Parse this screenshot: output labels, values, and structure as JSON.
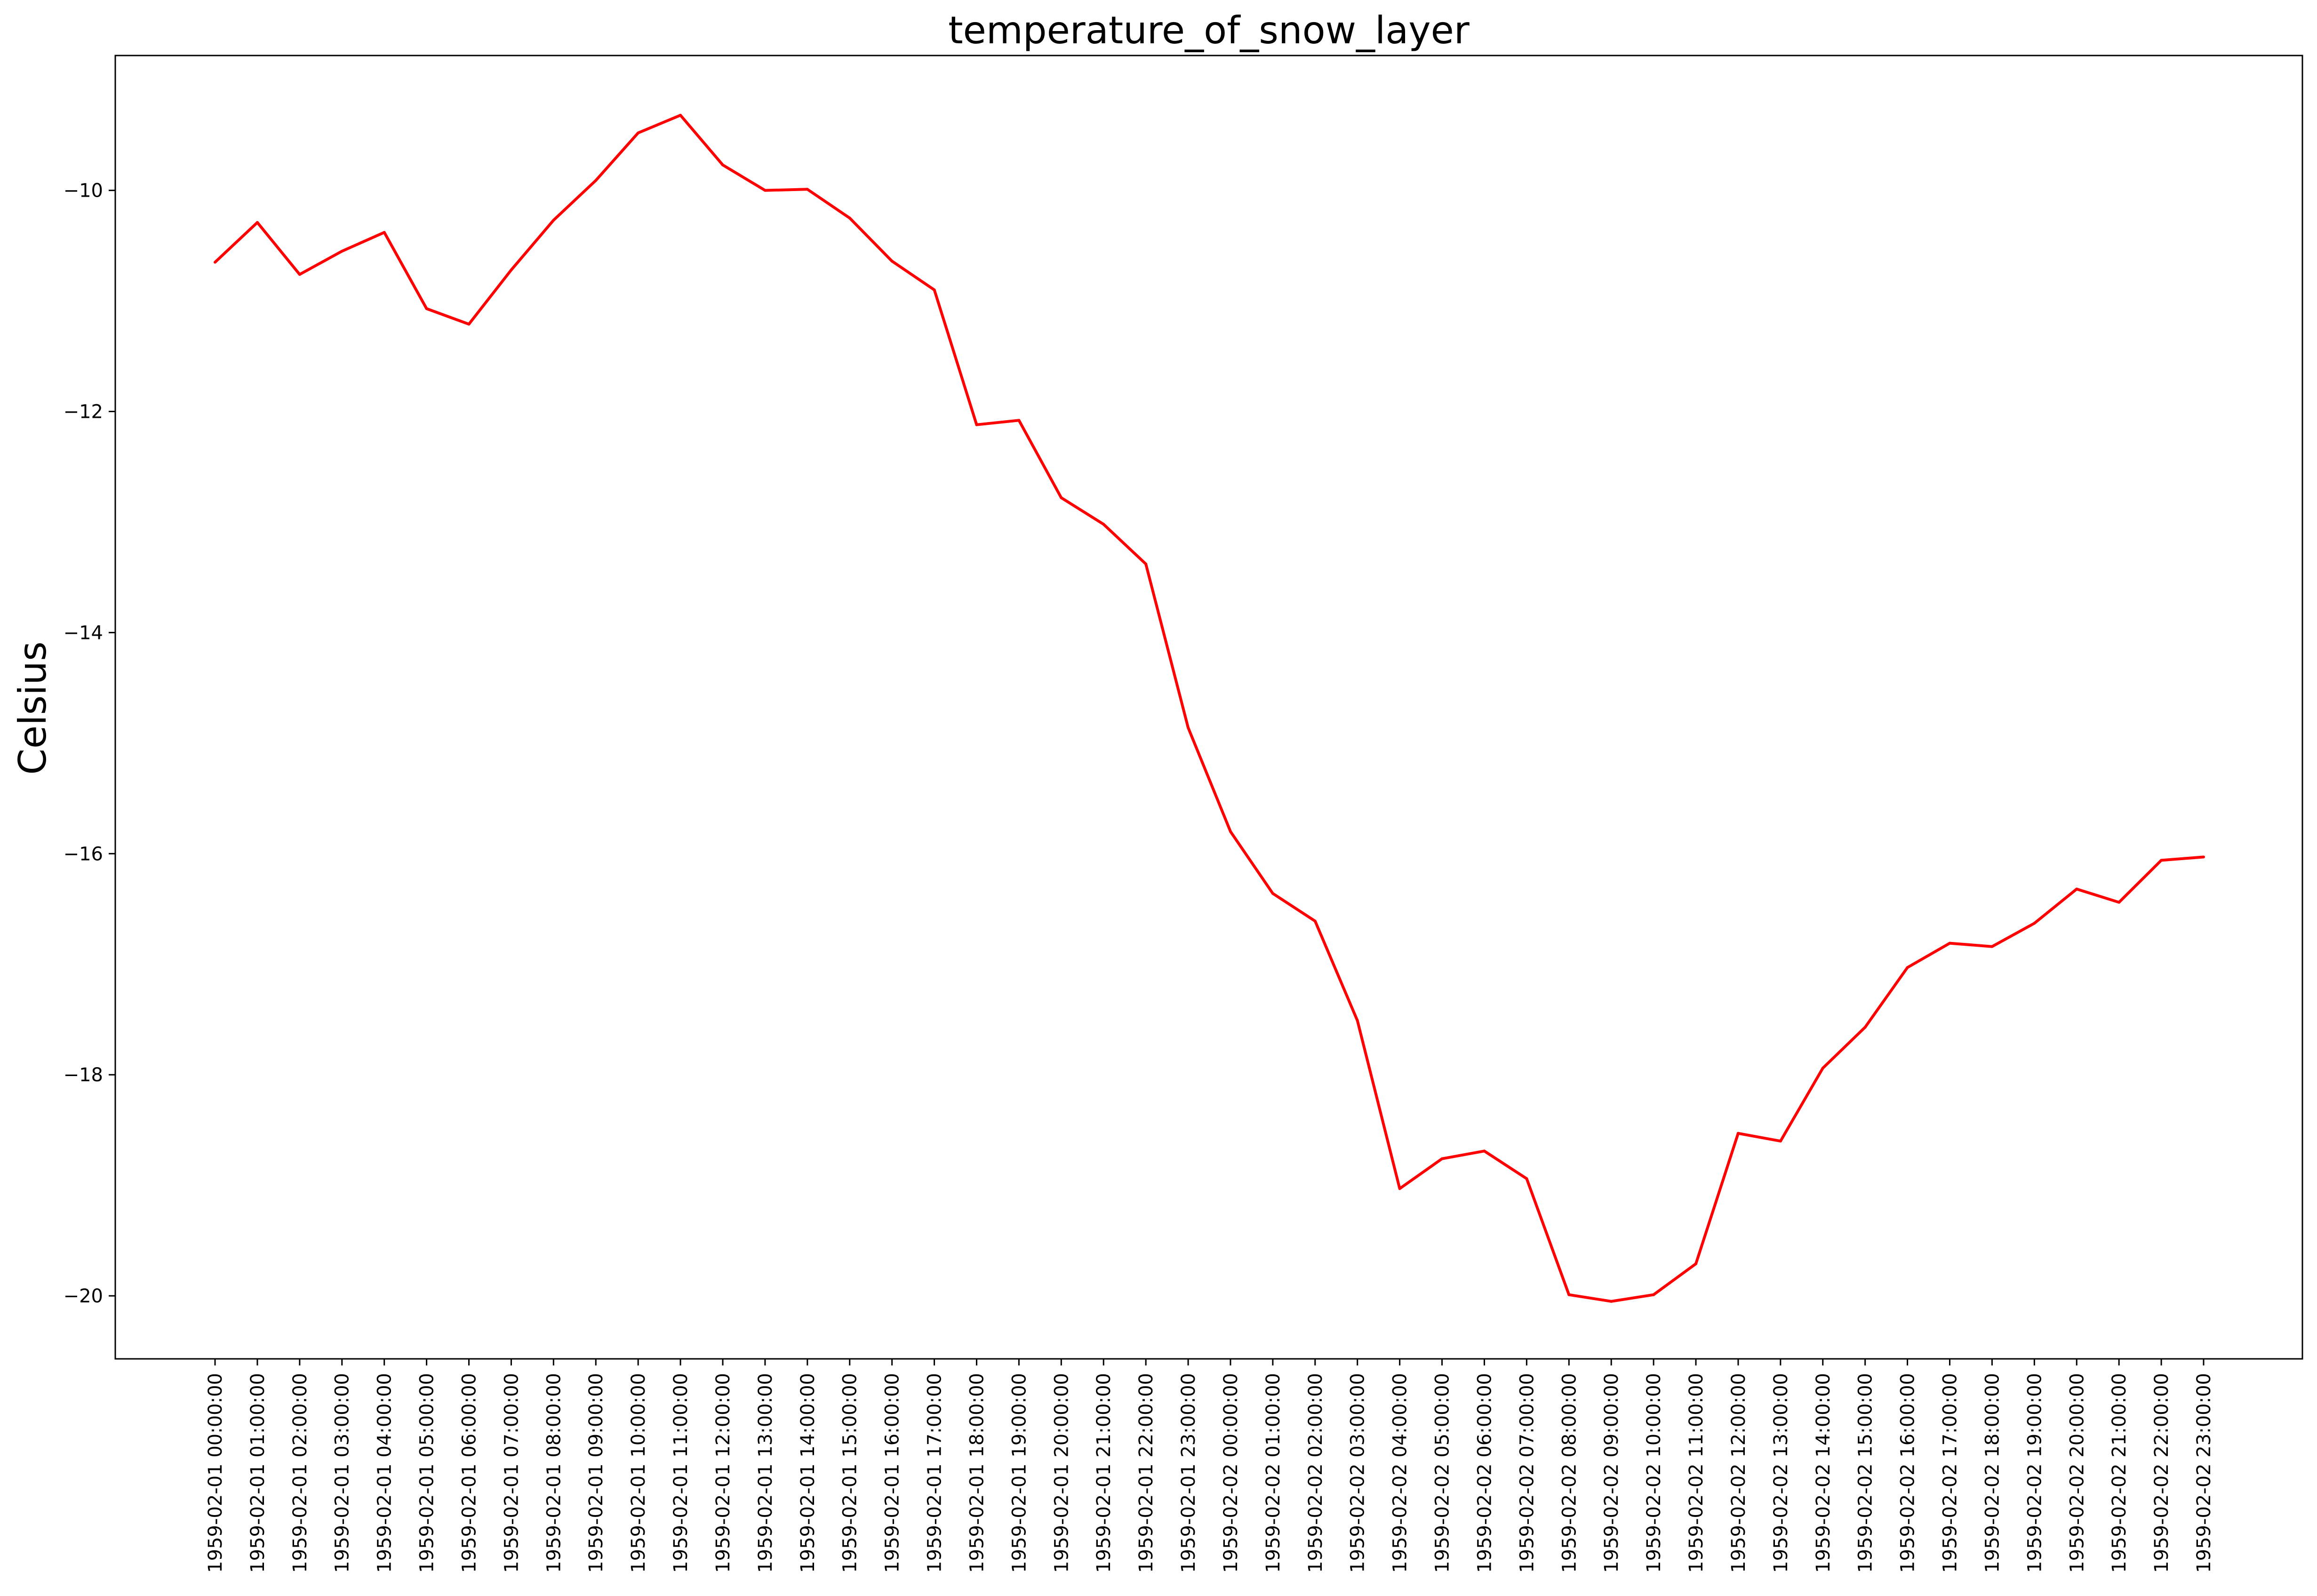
{
  "chart_data": {
    "type": "line",
    "title": "temperature_of_snow_layer",
    "xlabel": "",
    "ylabel": "Celsius",
    "grid": false,
    "legend": "none",
    "ylim": [
      -20.57,
      -8.78
    ],
    "y_ticks": [
      -10,
      -12,
      -14,
      -16,
      -18,
      -20
    ],
    "y_tick_labels": [
      "−10",
      "−12",
      "−14",
      "−16",
      "−18",
      "−20"
    ],
    "colors": {
      "line": "#ff0000",
      "axes": "#000000"
    },
    "x": [
      "1959-02-01 00:00:00",
      "1959-02-01 01:00:00",
      "1959-02-01 02:00:00",
      "1959-02-01 03:00:00",
      "1959-02-01 04:00:00",
      "1959-02-01 05:00:00",
      "1959-02-01 06:00:00",
      "1959-02-01 07:00:00",
      "1959-02-01 08:00:00",
      "1959-02-01 09:00:00",
      "1959-02-01 10:00:00",
      "1959-02-01 11:00:00",
      "1959-02-01 12:00:00",
      "1959-02-01 13:00:00",
      "1959-02-01 14:00:00",
      "1959-02-01 15:00:00",
      "1959-02-01 16:00:00",
      "1959-02-01 17:00:00",
      "1959-02-01 18:00:00",
      "1959-02-01 19:00:00",
      "1959-02-01 20:00:00",
      "1959-02-01 21:00:00",
      "1959-02-01 22:00:00",
      "1959-02-01 23:00:00",
      "1959-02-02 00:00:00",
      "1959-02-02 01:00:00",
      "1959-02-02 02:00:00",
      "1959-02-02 03:00:00",
      "1959-02-02 04:00:00",
      "1959-02-02 05:00:00",
      "1959-02-02 06:00:00",
      "1959-02-02 07:00:00",
      "1959-02-02 08:00:00",
      "1959-02-02 09:00:00",
      "1959-02-02 10:00:00",
      "1959-02-02 11:00:00",
      "1959-02-02 12:00:00",
      "1959-02-02 13:00:00",
      "1959-02-02 14:00:00",
      "1959-02-02 15:00:00",
      "1959-02-02 16:00:00",
      "1959-02-02 17:00:00",
      "1959-02-02 18:00:00",
      "1959-02-02 19:00:00",
      "1959-02-02 20:00:00",
      "1959-02-02 21:00:00",
      "1959-02-02 22:00:00",
      "1959-02-02 23:00:00"
    ],
    "series": [
      {
        "values": [
          -10.65,
          -10.29,
          -10.76,
          -10.55,
          -10.38,
          -11.07,
          -11.21,
          -10.72,
          -10.27,
          -9.91,
          -9.48,
          -9.32,
          -9.77,
          -10.0,
          -9.99,
          -10.25,
          -10.64,
          -10.9,
          -12.12,
          -12.08,
          -12.78,
          -13.02,
          -13.38,
          -14.86,
          -15.8,
          -16.36,
          -16.61,
          -17.51,
          -19.03,
          -18.76,
          -18.69,
          -18.94,
          -19.99,
          -20.05,
          -19.99,
          -19.71,
          -18.53,
          -18.6,
          -17.94,
          -17.57,
          -17.03,
          -16.81,
          -16.84,
          -16.63,
          -16.32,
          -16.44,
          -16.06,
          -16.03
        ]
      }
    ]
  }
}
